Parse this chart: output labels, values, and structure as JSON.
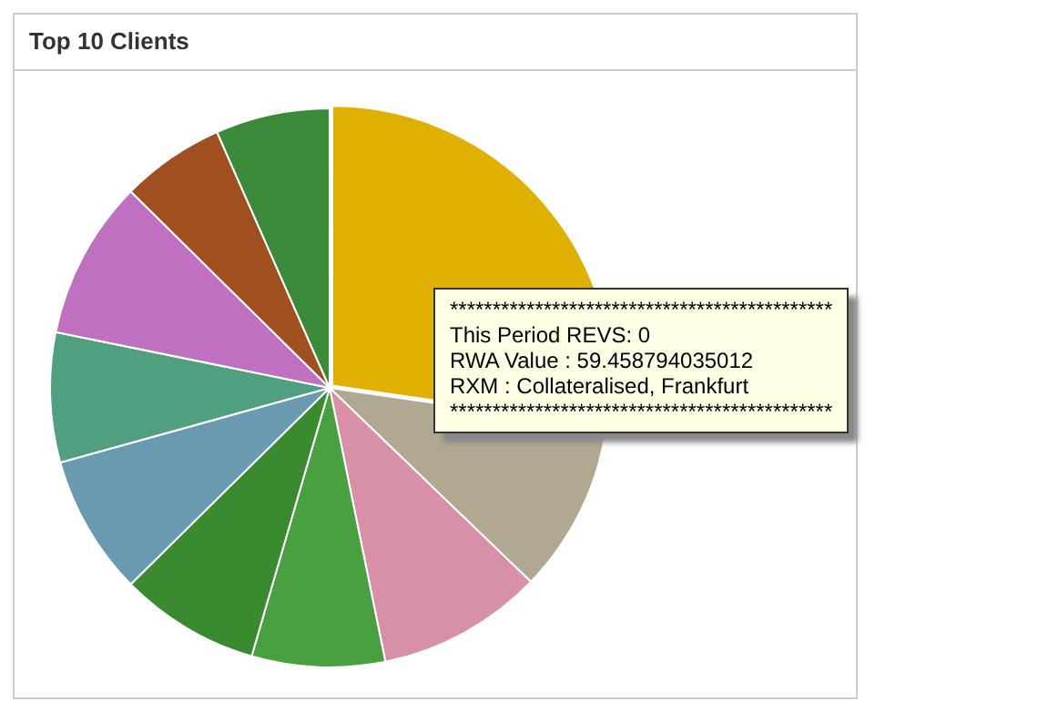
{
  "chart_data": {
    "type": "pie",
    "title": "Top 10 Clients",
    "legend": false,
    "categories": [
      null,
      null,
      null,
      null,
      null,
      null,
      null,
      null,
      null,
      null
    ],
    "values": [
      27.3,
      9.9,
      9.6,
      7.7,
      8.1,
      8.1,
      7.5,
      9.2,
      6,
      6.6
    ],
    "colors": [
      "#e0b000",
      "#b0a890",
      "#d890a8",
      "#48a040",
      "#3a8a30",
      "#6a9ab0",
      "#50a080",
      "#c070c0",
      "#a05020",
      "#3a8a3a"
    ],
    "annotations": [
      "*********************************************",
      "This Period REVS: 0",
      "RWA Value : 59.458794035012",
      "RXM : Collateralised, Frankfurt",
      "*********************************************"
    ]
  }
}
